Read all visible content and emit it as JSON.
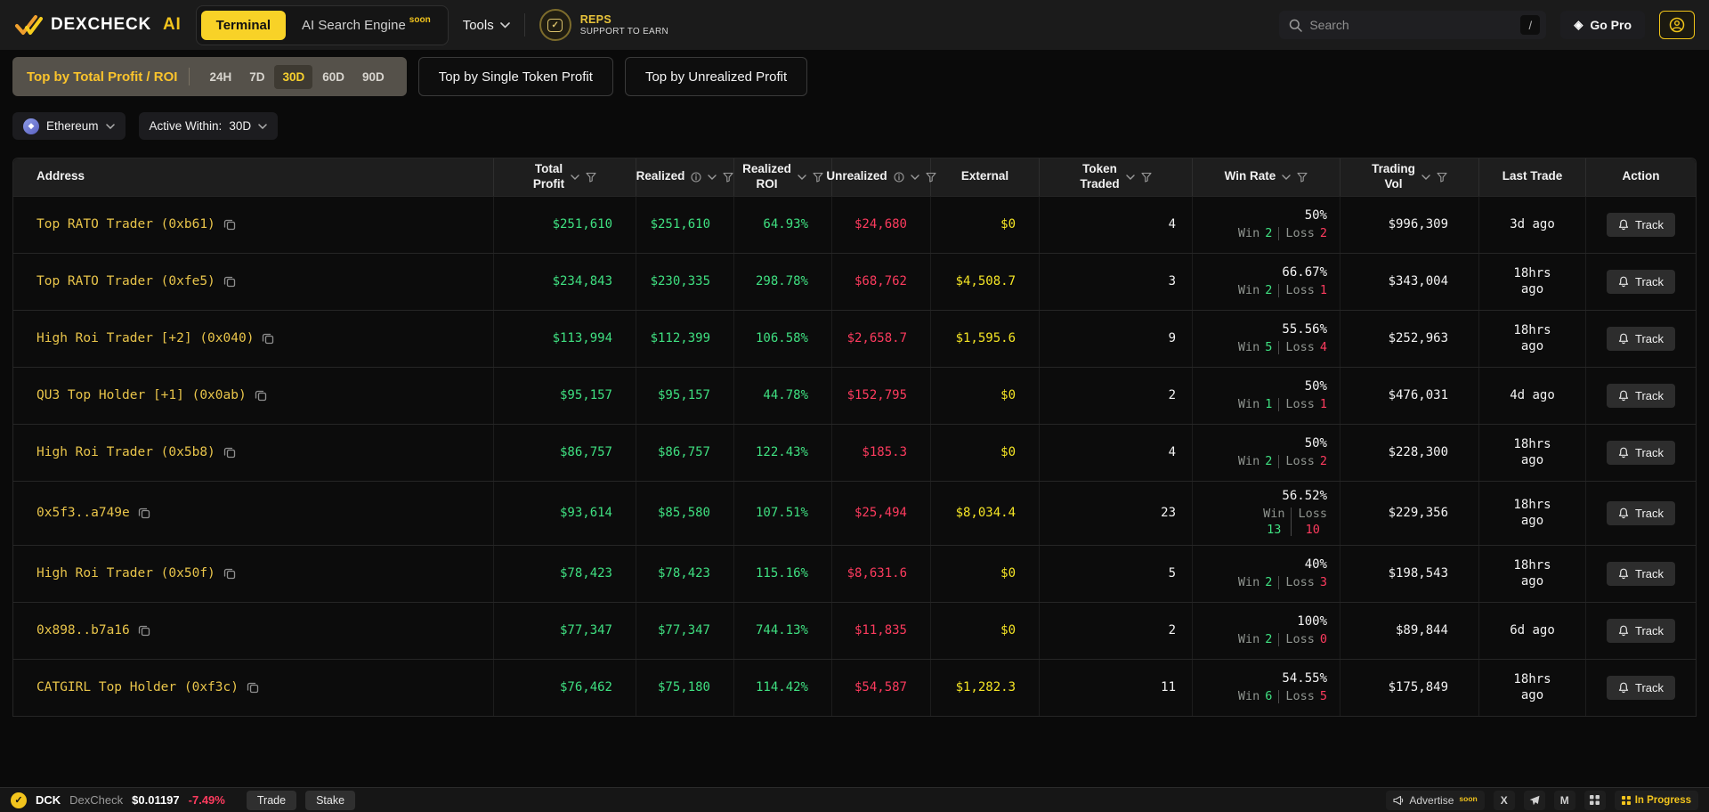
{
  "nav": {
    "brand": "DEXCHECK",
    "brand_suffix": "AI",
    "terminal_tab": "Terminal",
    "ai_search_tab": "AI Search Engine",
    "ai_search_badge": "soon",
    "tools_label": "Tools",
    "reps_title": "REPS",
    "reps_subtitle": "SUPPORT TO EARN",
    "search_placeholder": "Search",
    "search_shortcut": "/",
    "go_pro_label": "Go Pro"
  },
  "toolbar": {
    "main_tab": "Top by Total Profit / ROI",
    "timeframes": [
      "24H",
      "7D",
      "30D",
      "60D",
      "90D"
    ],
    "active_timeframe": "30D",
    "tab_single_token": "Top by Single Token Profit",
    "tab_unrealized": "Top by Unrealized Profit",
    "network": "Ethereum",
    "active_within_label": "Active Within:",
    "active_within_value": "30D"
  },
  "table": {
    "columns": [
      {
        "label": "Address",
        "align": "left",
        "icons": []
      },
      {
        "label": "Total\nProfit",
        "icons": [
          "sort",
          "filter"
        ]
      },
      {
        "label": "Realized",
        "icons": [
          "info",
          "sort",
          "filter"
        ]
      },
      {
        "label": "Realized\nROI",
        "icons": [
          "sort",
          "filter"
        ]
      },
      {
        "label": "Unrealized",
        "icons": [
          "info",
          "sort",
          "filter"
        ]
      },
      {
        "label": "External",
        "icons": []
      },
      {
        "label": "Token\nTraded",
        "icons": [
          "sort",
          "filter"
        ]
      },
      {
        "label": "Win Rate",
        "icons": [
          "sort",
          "filter"
        ]
      },
      {
        "label": "Trading\nVol",
        "icons": [
          "sort",
          "filter"
        ]
      },
      {
        "label": "Last Trade",
        "icons": []
      },
      {
        "label": "Action",
        "icons": []
      }
    ],
    "win_label": "Win",
    "loss_label": "Loss",
    "track_label": "Track",
    "rows": [
      {
        "address": "Top RATO Trader (0xb61)",
        "total": "$251,610",
        "realized": "$251,610",
        "roi": "64.93%",
        "unrealized": "$24,680",
        "external": "$0",
        "tokens": "4",
        "win_rate": "50%",
        "wins": "2",
        "losses": "2",
        "volume": "$996,309",
        "last_trade": "3d ago",
        "wrap": false
      },
      {
        "address": "Top RATO Trader (0xfe5)",
        "total": "$234,843",
        "realized": "$230,335",
        "roi": "298.78%",
        "unrealized": "$68,762",
        "external": "$4,508.7",
        "tokens": "3",
        "win_rate": "66.67%",
        "wins": "2",
        "losses": "1",
        "volume": "$343,004",
        "last_trade": "18hrs ago",
        "wrap": false
      },
      {
        "address": "High Roi Trader [+2] (0x040)",
        "total": "$113,994",
        "realized": "$112,399",
        "roi": "106.58%",
        "unrealized": "$2,658.7",
        "external": "$1,595.6",
        "tokens": "9",
        "win_rate": "55.56%",
        "wins": "5",
        "losses": "4",
        "volume": "$252,963",
        "last_trade": "18hrs ago",
        "wrap": false
      },
      {
        "address": "QU3 Top Holder [+1] (0x0ab)",
        "total": "$95,157",
        "realized": "$95,157",
        "roi": "44.78%",
        "unrealized": "$152,795",
        "external": "$0",
        "tokens": "2",
        "win_rate": "50%",
        "wins": "1",
        "losses": "1",
        "volume": "$476,031",
        "last_trade": "4d ago",
        "wrap": false
      },
      {
        "address": "High Roi Trader (0x5b8)",
        "total": "$86,757",
        "realized": "$86,757",
        "roi": "122.43%",
        "unrealized": "$185.3",
        "external": "$0",
        "tokens": "4",
        "win_rate": "50%",
        "wins": "2",
        "losses": "2",
        "volume": "$228,300",
        "last_trade": "18hrs ago",
        "wrap": false
      },
      {
        "address": "0x5f3..a749e",
        "total": "$93,614",
        "realized": "$85,580",
        "roi": "107.51%",
        "unrealized": "$25,494",
        "external": "$8,034.4",
        "tokens": "23",
        "win_rate": "56.52%",
        "wins": "13",
        "losses": "10",
        "volume": "$229,356",
        "last_trade": "18hrs ago",
        "wrap": true
      },
      {
        "address": "High Roi Trader (0x50f)",
        "total": "$78,423",
        "realized": "$78,423",
        "roi": "115.16%",
        "unrealized": "$8,631.6",
        "external": "$0",
        "tokens": "5",
        "win_rate": "40%",
        "wins": "2",
        "losses": "3",
        "volume": "$198,543",
        "last_trade": "18hrs ago",
        "wrap": false
      },
      {
        "address": "0x898..b7a16",
        "total": "$77,347",
        "realized": "$77,347",
        "roi": "744.13%",
        "unrealized": "$11,835",
        "external": "$0",
        "tokens": "2",
        "win_rate": "100%",
        "wins": "2",
        "losses": "0",
        "volume": "$89,844",
        "last_trade": "6d ago",
        "wrap": false
      },
      {
        "address": "CATGIRL Top Holder (0xf3c)",
        "total": "$76,462",
        "realized": "$75,180",
        "roi": "114.42%",
        "unrealized": "$54,587",
        "external": "$1,282.3",
        "tokens": "11",
        "win_rate": "54.55%",
        "wins": "6",
        "losses": "5",
        "volume": "$175,849",
        "last_trade": "18hrs ago",
        "wrap": false
      }
    ]
  },
  "footer": {
    "symbol": "DCK",
    "name": "DexCheck",
    "price": "$0.01197",
    "change": "-7.49%",
    "trade_label": "Trade",
    "stake_label": "Stake",
    "advertise_label": "Advertise",
    "advertise_badge": "soon",
    "status_label": "In Progress"
  },
  "icons": {
    "eth_diamond": "◆",
    "gem": "◈",
    "check": "✓",
    "x_social": "X",
    "medium": "M"
  },
  "colors": {
    "accent_yellow": "#f2c41d",
    "terminal_yellow": "#f8d227",
    "address_yellow": "#e8c44a",
    "positive_green": "#3fe081",
    "negative_red": "#fd3b5e",
    "external_yellow": "#f5e525",
    "nav_bg": "#1b1b1b",
    "page_bg": "#0a0a0a",
    "table_header_bg": "#1e1e1e"
  }
}
